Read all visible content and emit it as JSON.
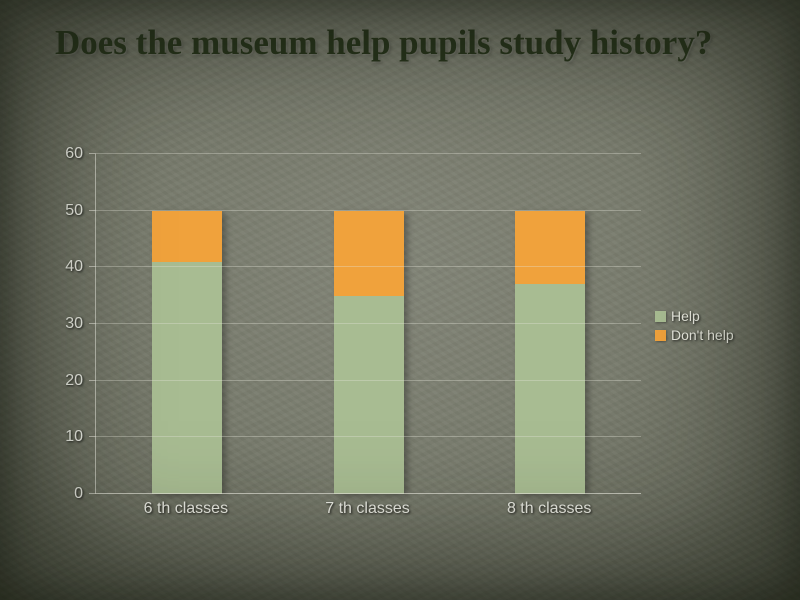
{
  "slide": {
    "title": "Does the museum help pupils study history?"
  },
  "chart_data": {
    "type": "bar",
    "stacked": true,
    "title": "Does the museum help pupils study history?",
    "categories": [
      "6 th classes",
      "7 th classes",
      "8 th classes"
    ],
    "series": [
      {
        "name": "Help",
        "color": "#a8bc92",
        "values": [
          41,
          35,
          37
        ]
      },
      {
        "name": "Don't help",
        "color": "#f0a23c",
        "values": [
          9,
          15,
          13
        ]
      }
    ],
    "xlabel": "",
    "ylabel": "",
    "ylim": [
      0,
      60
    ],
    "ytick_step": 10,
    "grid": true,
    "legend_position": "right",
    "colors": {
      "background": "#787b6d",
      "title_text": "#26331a",
      "axis_text": "#ebece4"
    }
  }
}
